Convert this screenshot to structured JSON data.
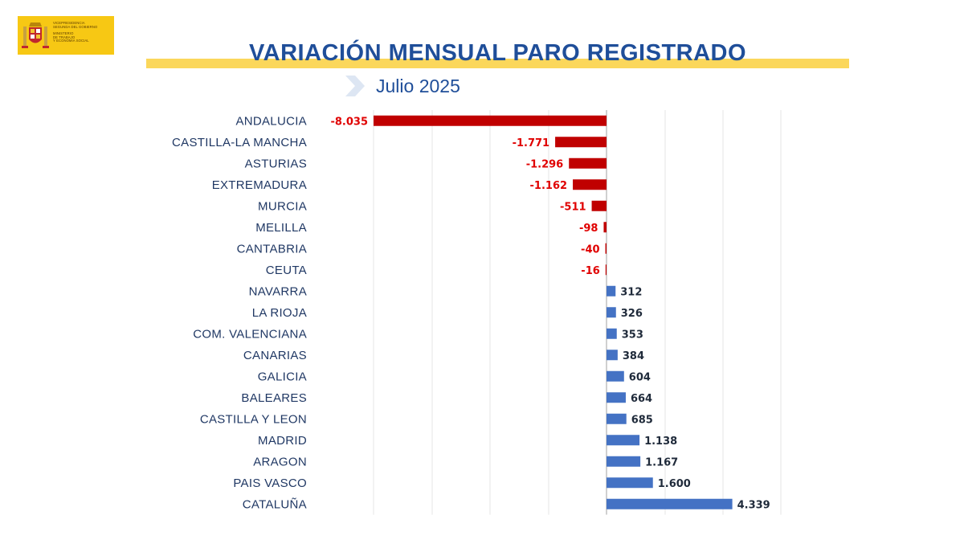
{
  "logo": {
    "lines": [
      "VICEPRESIDENCIA",
      "SEGUNDA DEL GOBIERNO",
      "",
      "MINISTERIO",
      "DE TRABAJO",
      "Y ECONOMÍA SOCIAL"
    ]
  },
  "header": {
    "title": "VARIACIÓN MENSUAL PARO REGISTRADO",
    "subtitle": "Julio 2025"
  },
  "colors": {
    "negative": "#c00000",
    "positive": "#4472c4",
    "negative_label": "#e00000",
    "positive_label": "#1f2a3a",
    "category_label": "#203864",
    "title": "#1f4e99",
    "band": "#fbd75b"
  },
  "chart_data": {
    "type": "bar",
    "orientation": "horizontal",
    "title": "",
    "xlabel": "",
    "ylabel": "",
    "xlim": [
      -8035,
      4339
    ],
    "grid": true,
    "categories": [
      "ANDALUCIA",
      "CASTILLA-LA MANCHA",
      "ASTURIAS",
      "EXTREMADURA",
      "MURCIA",
      "MELILLA",
      "CANTABRIA",
      "CEUTA",
      "NAVARRA",
      "LA RIOJA",
      "COM. VALENCIANA",
      "CANARIAS",
      "GALICIA",
      "BALEARES",
      "CASTILLA Y LEON",
      "MADRID",
      "ARAGON",
      "PAIS VASCO",
      "CATALUÑA"
    ],
    "values": [
      -8035,
      -1771,
      -1296,
      -1162,
      -511,
      -98,
      -40,
      -16,
      312,
      326,
      353,
      384,
      604,
      664,
      685,
      1138,
      1167,
      1600,
      4339
    ],
    "value_labels": [
      "-8.035",
      "-1.771",
      "-1.296",
      "-1.162",
      "-511",
      "-98",
      "-40",
      "-16",
      "312",
      "326",
      "353",
      "384",
      "604",
      "664",
      "685",
      "1.138",
      "1.167",
      "1.600",
      "4.339"
    ]
  }
}
